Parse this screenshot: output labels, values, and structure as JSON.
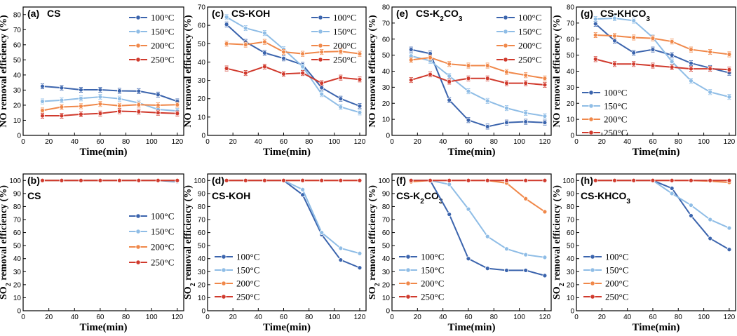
{
  "figure": {
    "x_label": "Time(min)",
    "series_names": [
      "100°C",
      "150°C",
      "200°C",
      "250°C"
    ],
    "series_colors": [
      "#3b64ad",
      "#8fbde6",
      "#f0884a",
      "#d03a2d"
    ],
    "x_ticks": [
      0,
      20,
      40,
      60,
      80,
      100,
      120
    ]
  },
  "chart_data": [
    {
      "type": "line",
      "panel": "(a)",
      "subtitle": "CS",
      "ylabel": "NO removal efficiency (%)",
      "xlim": [
        0,
        125
      ],
      "ylim": [
        0,
        85
      ],
      "y_ticks": [
        0,
        10,
        20,
        30,
        40,
        50,
        60,
        70,
        80
      ],
      "legend_position": "top-right",
      "x": [
        15,
        30,
        45,
        60,
        75,
        90,
        105,
        120
      ],
      "series": [
        {
          "name": "100°C",
          "values": [
            32.5,
            31.5,
            30.2,
            30.2,
            29.5,
            29.3,
            27,
            22.5
          ]
        },
        {
          "name": "150°C",
          "values": [
            22.5,
            23.3,
            24.5,
            25.5,
            24.3,
            21.5,
            17.2,
            16.2
          ]
        },
        {
          "name": "200°C",
          "values": [
            16.5,
            18.8,
            19.3,
            20.8,
            19.6,
            20.3,
            20,
            20.3
          ]
        },
        {
          "name": "250°C",
          "values": [
            13,
            13,
            14,
            14.5,
            16,
            15.7,
            15,
            14.5
          ]
        }
      ]
    },
    {
      "type": "line",
      "panel": "(c)",
      "subtitle": "CS-KOH",
      "ylabel": "NO removal efficiency (%)",
      "xlim": [
        0,
        125
      ],
      "ylim": [
        0,
        70
      ],
      "y_ticks": [
        0,
        10,
        20,
        30,
        40,
        50,
        60,
        70
      ],
      "legend_position": "top-right",
      "x": [
        15,
        30,
        45,
        60,
        75,
        90,
        105,
        120
      ],
      "series": [
        {
          "name": "100°C",
          "values": [
            60.5,
            51,
            45,
            42,
            38.5,
            26,
            20,
            16
          ]
        },
        {
          "name": "150°C",
          "values": [
            64.5,
            58.5,
            55.8,
            47,
            37.5,
            22.5,
            15.5,
            12.5
          ]
        },
        {
          "name": "200°C",
          "values": [
            50,
            49.5,
            51,
            45.5,
            44.5,
            45.5,
            45.8,
            44.5
          ]
        },
        {
          "name": "250°C",
          "values": [
            36.5,
            34,
            37.5,
            33.5,
            34,
            28.5,
            31.5,
            30.5
          ]
        }
      ]
    },
    {
      "type": "line",
      "panel": "(e)",
      "subtitle": "CS-K2CO3",
      "ylabel": "NO removal efficiency (%)",
      "xlim": [
        0,
        125
      ],
      "ylim": [
        0,
        80
      ],
      "y_ticks": [
        0,
        10,
        20,
        30,
        40,
        50,
        60,
        70,
        80
      ],
      "legend_position": "top-right",
      "x": [
        15,
        30,
        45,
        60,
        75,
        90,
        105,
        120
      ],
      "series": [
        {
          "name": "100°C",
          "values": [
            53.5,
            51,
            22,
            9.5,
            5.5,
            8,
            8.5,
            8
          ]
        },
        {
          "name": "150°C",
          "values": [
            49.5,
            46.5,
            37,
            27.5,
            21.5,
            17,
            14,
            12
          ]
        },
        {
          "name": "200°C",
          "values": [
            47,
            48.5,
            44.5,
            43.5,
            43.5,
            39.5,
            37.5,
            35.5
          ]
        },
        {
          "name": "250°C",
          "values": [
            34.5,
            38,
            33.5,
            35.5,
            35.5,
            32.5,
            32.5,
            31.5
          ]
        }
      ]
    },
    {
      "type": "line",
      "panel": "(g)",
      "subtitle": "CS-KHCO3",
      "ylabel": "NO removal efficiency (%)",
      "xlim": [
        0,
        125
      ],
      "ylim": [
        0,
        80
      ],
      "y_ticks": [
        0,
        10,
        20,
        30,
        40,
        50,
        60,
        70,
        80
      ],
      "legend_position": "middle-left",
      "x": [
        15,
        30,
        45,
        60,
        75,
        90,
        105,
        120
      ],
      "series": [
        {
          "name": "100°C",
          "values": [
            69.5,
            59,
            51.5,
            53.5,
            50,
            45,
            42,
            39
          ]
        },
        {
          "name": "150°C",
          "values": [
            72.5,
            73,
            71.5,
            61,
            46,
            34,
            27,
            24
          ]
        },
        {
          "name": "200°C",
          "values": [
            62.5,
            62,
            61,
            60.5,
            58.5,
            53.5,
            52,
            50.5
          ]
        },
        {
          "name": "250°C",
          "values": [
            47.5,
            44.5,
            44.5,
            43.5,
            42.5,
            41.5,
            41.5,
            41
          ]
        }
      ]
    },
    {
      "type": "line",
      "panel": "(b)",
      "subtitle": "CS",
      "ylabel": "SO2 removal efficiency (%)",
      "xlim": [
        0,
        125
      ],
      "ylim": [
        0,
        105
      ],
      "y_ticks": [
        0,
        10,
        20,
        30,
        40,
        50,
        60,
        70,
        80,
        90,
        100
      ],
      "legend_position": "right",
      "x": [
        15,
        30,
        45,
        60,
        75,
        90,
        105,
        120
      ],
      "series": [
        {
          "name": "100°C",
          "values": [
            100,
            100,
            100,
            100,
            100,
            100,
            100,
            99
          ]
        },
        {
          "name": "150°C",
          "values": [
            100,
            100,
            100,
            100,
            100,
            100,
            100,
            99.5
          ]
        },
        {
          "name": "200°C",
          "values": [
            100,
            100,
            100,
            100,
            100,
            100,
            100,
            100
          ]
        },
        {
          "name": "250°C",
          "values": [
            100,
            100,
            100,
            100,
            100,
            100,
            100,
            100
          ]
        }
      ]
    },
    {
      "type": "line",
      "panel": "(d)",
      "subtitle": "CS-KOH",
      "ylabel": "SO2 removal efficiency (%)",
      "xlim": [
        0,
        125
      ],
      "ylim": [
        0,
        105
      ],
      "y_ticks": [
        0,
        10,
        20,
        30,
        40,
        50,
        60,
        70,
        80,
        90,
        100
      ],
      "legend_position": "bottom-left",
      "x": [
        15,
        30,
        45,
        60,
        75,
        90,
        105,
        120
      ],
      "series": [
        {
          "name": "100°C",
          "values": [
            100,
            100,
            100,
            100,
            89,
            58.5,
            39,
            33
          ]
        },
        {
          "name": "150°C",
          "values": [
            100,
            100,
            100,
            100,
            93,
            60,
            48,
            44
          ]
        },
        {
          "name": "200°C",
          "values": [
            100,
            100,
            100,
            100,
            100,
            100,
            100,
            100
          ]
        },
        {
          "name": "250°C",
          "values": [
            100,
            100,
            100,
            100,
            100,
            100,
            100,
            100
          ]
        }
      ]
    },
    {
      "type": "line",
      "panel": "(f)",
      "subtitle": "CS-K2CO3",
      "ylabel": "SO2 removal efficiency (%)",
      "xlim": [
        0,
        125
      ],
      "ylim": [
        0,
        105
      ],
      "y_ticks": [
        0,
        10,
        20,
        30,
        40,
        50,
        60,
        70,
        80,
        90,
        100
      ],
      "legend_position": "bottom-left",
      "x": [
        15,
        30,
        45,
        60,
        75,
        90,
        105,
        120
      ],
      "series": [
        {
          "name": "100°C",
          "values": [
            100,
            100,
            74,
            40,
            32.5,
            31,
            31,
            27
          ]
        },
        {
          "name": "150°C",
          "values": [
            100,
            100,
            97,
            78,
            57,
            47.5,
            43,
            41
          ]
        },
        {
          "name": "200°C",
          "values": [
            99,
            100,
            100,
            100,
            100,
            98,
            86,
            76
          ]
        },
        {
          "name": "250°C",
          "values": [
            100,
            100,
            100,
            100,
            100,
            100,
            100,
            100
          ]
        }
      ]
    },
    {
      "type": "line",
      "panel": "(h)",
      "subtitle": "CS-KHCO3",
      "ylabel": "SO2 removal efficiency (%)",
      "xlim": [
        0,
        125
      ],
      "ylim": [
        0,
        105
      ],
      "y_ticks": [
        0,
        10,
        20,
        30,
        40,
        50,
        60,
        70,
        80,
        90,
        100
      ],
      "legend_position": "bottom-left",
      "x": [
        15,
        30,
        45,
        60,
        75,
        90,
        105,
        120
      ],
      "series": [
        {
          "name": "100°C",
          "values": [
            100,
            100,
            100,
            100,
            94,
            73,
            55.5,
            47
          ]
        },
        {
          "name": "150°C",
          "values": [
            100,
            100,
            100,
            100,
            90,
            81,
            70,
            63.5
          ]
        },
        {
          "name": "200°C",
          "values": [
            100,
            100,
            100,
            100,
            100,
            100,
            99.5,
            98.5
          ]
        },
        {
          "name": "250°C",
          "values": [
            100,
            100,
            100,
            100,
            100,
            100,
            100,
            100
          ]
        }
      ]
    }
  ]
}
